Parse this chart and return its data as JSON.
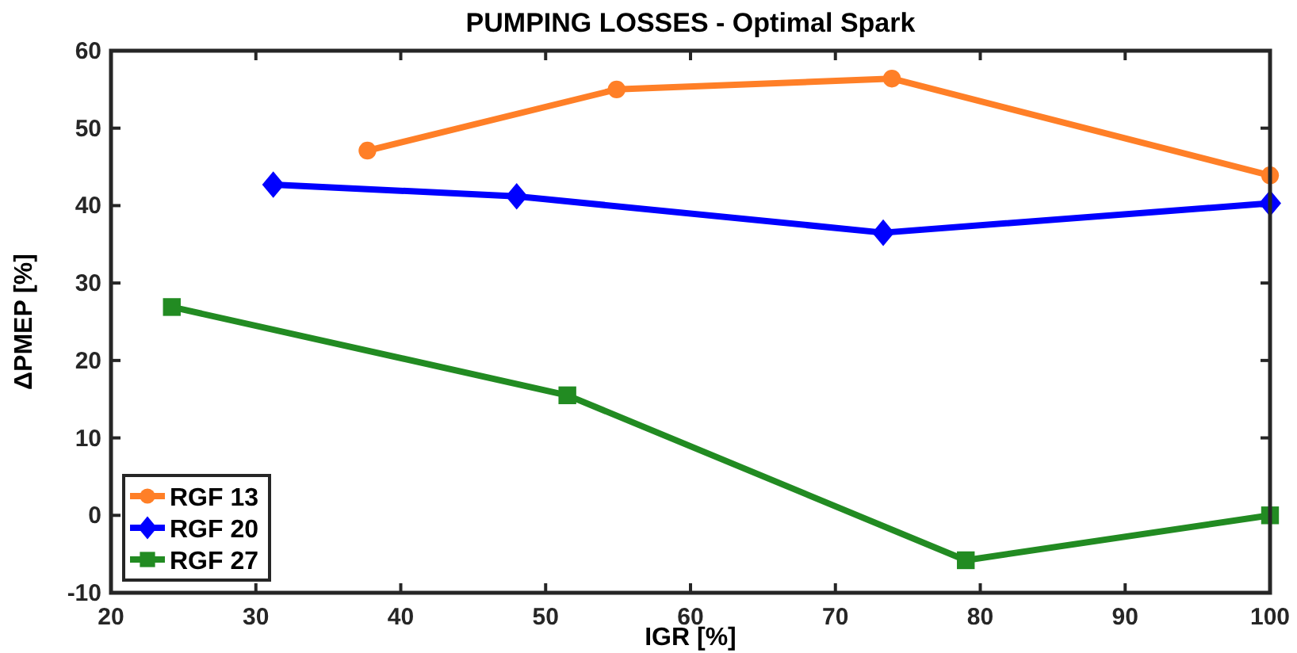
{
  "chart_data": {
    "type": "line",
    "title": "PUMPING LOSSES - Optimal Spark",
    "xlabel": "IGR [%]",
    "ylabel": "ΔPMEP [%]",
    "xlim": [
      20,
      100
    ],
    "xticks": [
      20,
      30,
      40,
      50,
      60,
      70,
      80,
      90,
      100
    ],
    "ylim": [
      -10,
      60
    ],
    "yticks": [
      -10,
      0,
      10,
      20,
      30,
      40,
      50,
      60
    ],
    "grid": false,
    "legend": "bottom left",
    "line_style": "solid",
    "series": [
      {
        "name": "RGF 13",
        "color": "#ff7f27",
        "marker": "circle",
        "x": [
          37.7,
          54.9,
          73.9,
          100
        ],
        "values": [
          47.1,
          55.0,
          56.4,
          43.9
        ]
      },
      {
        "name": "RGF 20",
        "color": "#0000ff",
        "marker": "diamond",
        "x": [
          31.2,
          48.0,
          73.3,
          100
        ],
        "values": [
          42.7,
          41.2,
          36.5,
          40.3
        ]
      },
      {
        "name": "RGF 27",
        "color": "#228b22",
        "marker": "square",
        "x": [
          24.2,
          51.5,
          79.0,
          100
        ],
        "values": [
          26.9,
          15.5,
          -5.8,
          0
        ]
      }
    ]
  }
}
